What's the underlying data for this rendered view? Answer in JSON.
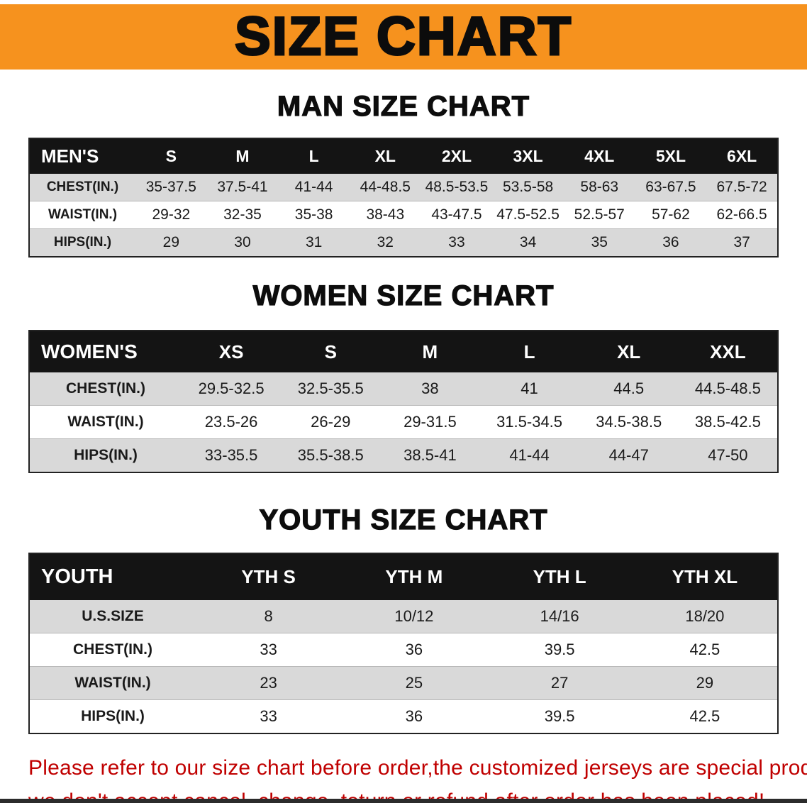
{
  "banner": {
    "title": "SIZE CHART",
    "bg_color": "#F6921E"
  },
  "sections": {
    "men": {
      "heading": "MAN SIZE CHART",
      "table": {
        "header": [
          "MEN'S",
          "S",
          "M",
          "L",
          "XL",
          "2XL",
          "3XL",
          "4XL",
          "5XL",
          "6XL"
        ],
        "rows": [
          [
            "CHEST(IN.)",
            "35-37.5",
            "37.5-41",
            "41-44",
            "44-48.5",
            "48.5-53.5",
            "53.5-58",
            "58-63",
            "63-67.5",
            "67.5-72"
          ],
          [
            "WAIST(IN.)",
            "29-32",
            "32-35",
            "35-38",
            "38-43",
            "43-47.5",
            "47.5-52.5",
            "52.5-57",
            "57-62",
            "62-66.5"
          ],
          [
            "HIPS(IN.)",
            "29",
            "30",
            "31",
            "32",
            "33",
            "34",
            "35",
            "36",
            "37"
          ]
        ]
      }
    },
    "women": {
      "heading": "WOMEN SIZE CHART",
      "table": {
        "header": [
          "WOMEN'S",
          "XS",
          "S",
          "M",
          "L",
          "XL",
          "XXL"
        ],
        "rows": [
          [
            "CHEST(IN.)",
            "29.5-32.5",
            "32.5-35.5",
            "38",
            "41",
            "44.5",
            "44.5-48.5"
          ],
          [
            "WAIST(IN.)",
            "23.5-26",
            "26-29",
            "29-31.5",
            "31.5-34.5",
            "34.5-38.5",
            "38.5-42.5"
          ],
          [
            "HIPS(IN.)",
            "33-35.5",
            "35.5-38.5",
            "38.5-41",
            "41-44",
            "44-47",
            "47-50"
          ]
        ]
      }
    },
    "youth": {
      "heading": "YOUTH SIZE CHART",
      "table": {
        "header": [
          "YOUTH",
          "YTH S",
          "YTH M",
          "YTH L",
          "YTH XL"
        ],
        "rows": [
          [
            "U.S.SIZE",
            "8",
            "10/12",
            "14/16",
            "18/20"
          ],
          [
            "CHEST(IN.)",
            "33",
            "36",
            "39.5",
            "42.5"
          ],
          [
            "WAIST(IN.)",
            "23",
            "25",
            "27",
            "29"
          ],
          [
            "HIPS(IN.)",
            "33",
            "36",
            "39.5",
            "42.5"
          ]
        ]
      }
    }
  },
  "disclaimer": {
    "line1": "Please refer to our size chart before order,the customized jerseys are special products,",
    "line2": "we don't accept cancel, change, teturn or refund after order has been placed!",
    "color": "#C00000"
  },
  "colors": {
    "banner_bg": "#F6921E",
    "table_header_bg": "#141414",
    "row_gray": "#D9D9D9",
    "row_white": "#FFFFFF"
  }
}
